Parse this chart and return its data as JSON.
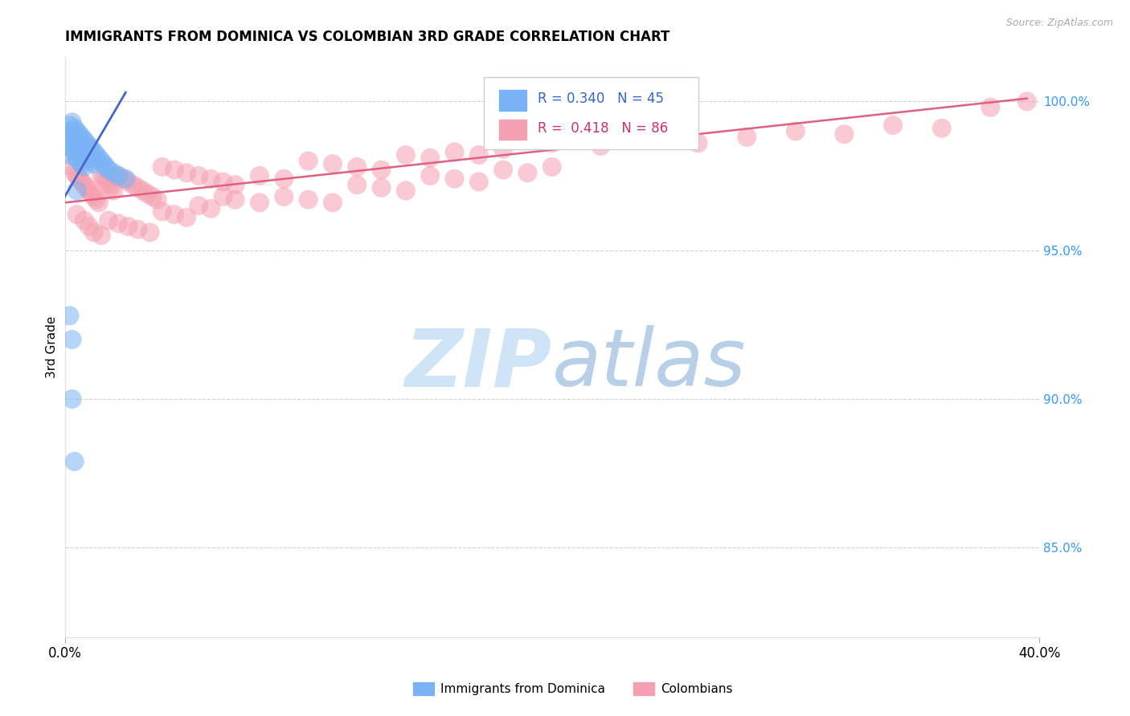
{
  "title": "IMMIGRANTS FROM DOMINICA VS COLOMBIAN 3RD GRADE CORRELATION CHART",
  "source": "Source: ZipAtlas.com",
  "ylabel": "3rd Grade",
  "ylabel_right_ticks": [
    "100.0%",
    "95.0%",
    "90.0%",
    "85.0%"
  ],
  "ylabel_right_vals": [
    1.0,
    0.95,
    0.9,
    0.85
  ],
  "legend_blue_R": "0.340",
  "legend_blue_N": "45",
  "legend_pink_R": "0.418",
  "legend_pink_N": "86",
  "legend_blue_label": "Immigrants from Dominica",
  "legend_pink_label": "Colombians",
  "blue_color": "#7ab3f5",
  "pink_color": "#f5a0b0",
  "blue_line_color": "#4466cc",
  "pink_line_color": "#e06080",
  "xlim": [
    0.0,
    0.4
  ],
  "ylim": [
    0.82,
    1.015
  ],
  "blue_scatter_x": [
    0.001,
    0.001,
    0.002,
    0.002,
    0.002,
    0.003,
    0.003,
    0.003,
    0.004,
    0.004,
    0.004,
    0.005,
    0.005,
    0.005,
    0.006,
    0.006,
    0.006,
    0.007,
    0.007,
    0.007,
    0.008,
    0.008,
    0.008,
    0.009,
    0.009,
    0.01,
    0.01,
    0.011,
    0.011,
    0.012,
    0.012,
    0.013,
    0.014,
    0.015,
    0.016,
    0.017,
    0.018,
    0.02,
    0.022,
    0.025,
    0.002,
    0.003,
    0.005,
    0.004,
    0.003
  ],
  "blue_scatter_y": [
    0.99,
    0.985,
    0.992,
    0.988,
    0.982,
    0.993,
    0.989,
    0.984,
    0.991,
    0.987,
    0.983,
    0.99,
    0.986,
    0.981,
    0.989,
    0.985,
    0.98,
    0.988,
    0.984,
    0.979,
    0.987,
    0.983,
    0.978,
    0.986,
    0.982,
    0.985,
    0.981,
    0.984,
    0.98,
    0.983,
    0.979,
    0.982,
    0.981,
    0.98,
    0.979,
    0.978,
    0.977,
    0.976,
    0.975,
    0.974,
    0.928,
    0.92,
    0.97,
    0.879,
    0.9
  ],
  "pink_scatter_x": [
    0.003,
    0.004,
    0.005,
    0.006,
    0.007,
    0.008,
    0.009,
    0.01,
    0.011,
    0.012,
    0.013,
    0.014,
    0.015,
    0.016,
    0.017,
    0.018,
    0.019,
    0.02,
    0.022,
    0.024,
    0.026,
    0.028,
    0.03,
    0.032,
    0.034,
    0.036,
    0.038,
    0.04,
    0.045,
    0.05,
    0.055,
    0.06,
    0.065,
    0.07,
    0.08,
    0.09,
    0.1,
    0.11,
    0.12,
    0.13,
    0.14,
    0.15,
    0.16,
    0.17,
    0.18,
    0.2,
    0.22,
    0.24,
    0.26,
    0.28,
    0.3,
    0.32,
    0.34,
    0.36,
    0.38,
    0.395,
    0.005,
    0.008,
    0.01,
    0.012,
    0.015,
    0.018,
    0.022,
    0.026,
    0.03,
    0.035,
    0.04,
    0.045,
    0.05,
    0.055,
    0.06,
    0.065,
    0.07,
    0.08,
    0.09,
    0.1,
    0.11,
    0.12,
    0.13,
    0.14,
    0.15,
    0.16,
    0.17,
    0.18,
    0.19,
    0.2
  ],
  "pink_scatter_y": [
    0.978,
    0.976,
    0.975,
    0.974,
    0.973,
    0.972,
    0.971,
    0.97,
    0.969,
    0.968,
    0.967,
    0.966,
    0.975,
    0.974,
    0.973,
    0.972,
    0.971,
    0.97,
    0.975,
    0.974,
    0.973,
    0.972,
    0.971,
    0.97,
    0.969,
    0.968,
    0.967,
    0.978,
    0.977,
    0.976,
    0.975,
    0.974,
    0.973,
    0.972,
    0.975,
    0.974,
    0.98,
    0.979,
    0.978,
    0.977,
    0.982,
    0.981,
    0.983,
    0.982,
    0.984,
    0.986,
    0.985,
    0.987,
    0.986,
    0.988,
    0.99,
    0.989,
    0.992,
    0.991,
    0.998,
    1.0,
    0.962,
    0.96,
    0.958,
    0.956,
    0.955,
    0.96,
    0.959,
    0.958,
    0.957,
    0.956,
    0.963,
    0.962,
    0.961,
    0.965,
    0.964,
    0.968,
    0.967,
    0.966,
    0.968,
    0.967,
    0.966,
    0.972,
    0.971,
    0.97,
    0.975,
    0.974,
    0.973,
    0.977,
    0.976,
    0.978
  ],
  "blue_line_x": [
    0.0,
    0.025
  ],
  "blue_line_y": [
    0.968,
    1.003
  ],
  "pink_line_x": [
    0.0,
    0.395
  ],
  "pink_line_y": [
    0.966,
    1.001
  ]
}
